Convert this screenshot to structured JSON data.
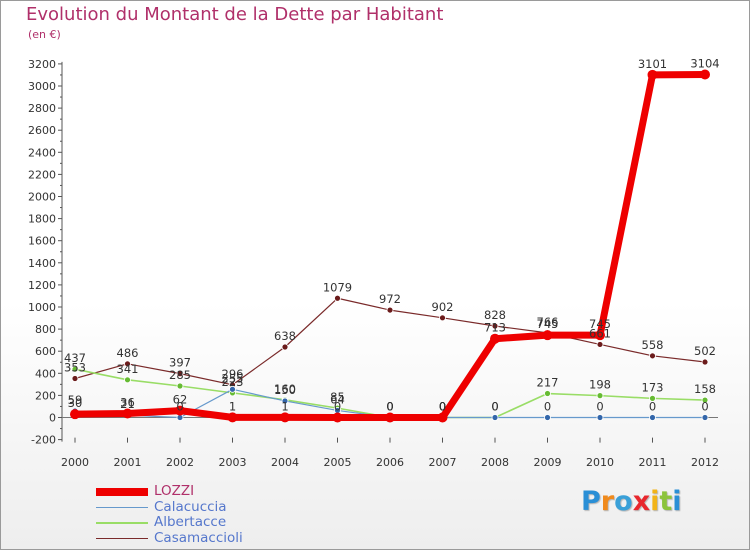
{
  "header": {
    "title": "Evolution du Montant de la Dette par Habitant",
    "subtitle": "(en €)"
  },
  "logo": {
    "text": "Proxiti",
    "letter_colors": [
      "#2a8fd6",
      "#f08a1c",
      "#3aa0d8",
      "#e8272d",
      "#f2b418",
      "#8cc43c",
      "#2a8fd6"
    ]
  },
  "chart_data": {
    "type": "line",
    "title": "Evolution du Montant de la Dette par Habitant",
    "subtitle": "(en €)",
    "xlabel": "",
    "ylabel": "",
    "x": [
      "2000",
      "2001",
      "2002",
      "2003",
      "2004",
      "2005",
      "2006",
      "2007",
      "2008",
      "2009",
      "2010",
      "2011",
      "2012"
    ],
    "ylim": [
      -200,
      3200
    ],
    "yticks": [
      "-200",
      "0",
      "200",
      "400",
      "600",
      "800",
      "1000",
      "1200",
      "1400",
      "1600",
      "1800",
      "2000",
      "2200",
      "2400",
      "2600",
      "2800",
      "3000",
      "3200"
    ],
    "grid": false,
    "legend_position": "bottom-left",
    "series": [
      {
        "name": "LOZZI",
        "color": "#ee0000",
        "marker": "#ee0000",
        "values": [
          30,
          36,
          62,
          1,
          1,
          0,
          0,
          0,
          713,
          745,
          745,
          3101,
          3104
        ],
        "labels": [
          "30",
          "36",
          "62",
          "1",
          "1",
          "0",
          "0",
          "0",
          "713",
          "745",
          "745",
          "3101",
          "3104"
        ]
      },
      {
        "name": "Calacuccia",
        "color": "#6699cc",
        "marker": "#3366aa",
        "values": [
          59,
          21,
          0,
          255,
          150,
          64,
          0,
          0,
          0,
          0,
          0,
          0,
          0
        ],
        "labels": [
          "59",
          "21",
          "0",
          "255",
          "150",
          "64",
          "0",
          "0",
          "0",
          "0",
          "0",
          "0",
          "0"
        ]
      },
      {
        "name": "Albertacce",
        "color": "#99dd66",
        "marker": "#66bb33",
        "values": [
          437,
          341,
          285,
          223,
          160,
          85,
          0,
          0,
          0,
          217,
          198,
          173,
          158
        ],
        "labels": [
          "437",
          "341",
          "285",
          "223",
          "160",
          "85",
          "0",
          "0",
          "0",
          "217",
          "198",
          "173",
          "158"
        ]
      },
      {
        "name": "Casamaccioli",
        "color": "#7a2a2a",
        "marker": "#6b1b1b",
        "values": [
          353,
          486,
          397,
          296,
          638,
          1079,
          972,
          902,
          828,
          766,
          661,
          558,
          502
        ],
        "labels": [
          "353",
          "486",
          "397",
          "296",
          "638",
          "1079",
          "972",
          "902",
          "828",
          "766",
          "661",
          "558",
          "502"
        ]
      }
    ]
  }
}
